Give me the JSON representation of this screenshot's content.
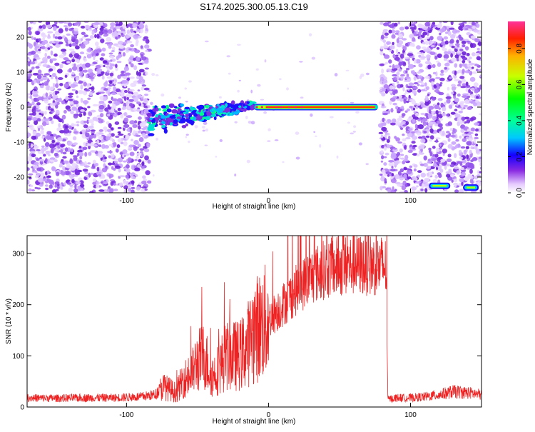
{
  "title": "S174.2025.300.05.13.C19",
  "chart_data": [
    {
      "type": "heatmap",
      "xlabel": "Height of straight line (km)",
      "ylabel": "Frequency (Hz)",
      "xlim": [
        -170,
        150
      ],
      "ylim": [
        -24.5,
        24.5
      ],
      "xticks": [
        -100,
        0,
        100
      ],
      "yticks": [
        -20,
        -10,
        0,
        10,
        20
      ],
      "colorbar": {
        "label": "Normalized spectral amplitude",
        "range": [
          0,
          0.95
        ],
        "ticks": [
          0.0,
          0.2,
          0.4,
          0.6,
          0.8
        ]
      },
      "features": [
        {
          "kind": "noise",
          "x_range": [
            -170,
            -84
          ]
        },
        {
          "kind": "scattered signal",
          "x_range": [
            -84,
            -10
          ],
          "freq_range": [
            -10,
            4
          ]
        },
        {
          "kind": "carrier line",
          "x_range": [
            -10,
            77
          ],
          "frequency": 0
        },
        {
          "kind": "noise",
          "x_range": [
            79,
            150
          ]
        },
        {
          "kind": "tone",
          "x_range": [
            113,
            128
          ],
          "frequency": -22.5
        },
        {
          "kind": "tone",
          "x_range": [
            137,
            148
          ],
          "frequency": -23
        }
      ]
    },
    {
      "type": "line",
      "xlabel": "Height of straight line (km)",
      "ylabel": "SNR (10 * v/v)",
      "xlim": [
        -170,
        150
      ],
      "ylim": [
        0,
        335
      ],
      "xticks": [
        -100,
        0,
        100
      ],
      "yticks": [
        0,
        100,
        200,
        300
      ],
      "color": "#ee2222",
      "series": [
        {
          "x": [
            -170,
            -150,
            -130,
            -110,
            -90,
            -80,
            -74,
            -70,
            -65,
            -60,
            -55,
            -50,
            -45,
            -40,
            -35,
            -30,
            -25,
            -20,
            -15,
            -10,
            -5,
            0,
            10,
            20,
            30,
            40,
            50,
            60,
            70,
            80,
            83,
            84,
            90,
            100,
            110,
            120,
            130,
            140,
            150
          ],
          "values": [
            18,
            17,
            18,
            18,
            20,
            24,
            40,
            35,
            28,
            55,
            60,
            90,
            100,
            60,
            75,
            100,
            100,
            100,
            120,
            150,
            160,
            170,
            200,
            230,
            255,
            270,
            275,
            278,
            278,
            276,
            272,
            15,
            18,
            18,
            20,
            24,
            30,
            28,
            24
          ]
        }
      ]
    }
  ]
}
